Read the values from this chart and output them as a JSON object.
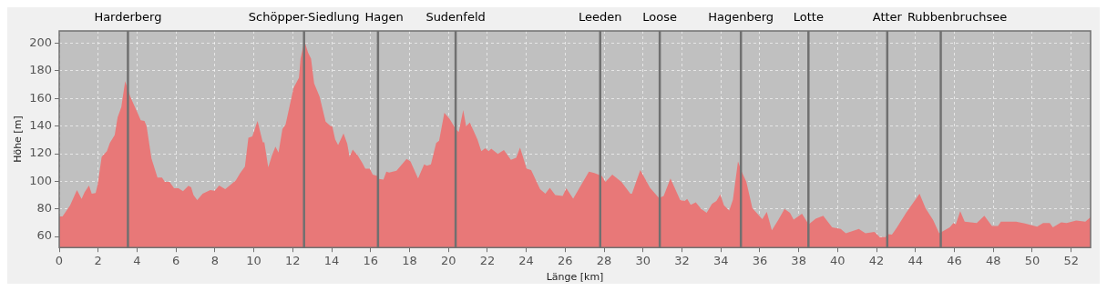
{
  "chart_data": {
    "type": "area",
    "xlabel": "Länge [km]",
    "ylabel": "Höhe [m]",
    "xlim": [
      0,
      53
    ],
    "ylim": [
      52,
      209
    ],
    "xticks": [
      0,
      2,
      4,
      6,
      8,
      10,
      12,
      14,
      16,
      18,
      20,
      22,
      24,
      26,
      28,
      30,
      32,
      34,
      36,
      38,
      40,
      42,
      44,
      46,
      48,
      50,
      52
    ],
    "yticks": [
      60,
      80,
      100,
      120,
      140,
      160,
      180,
      200
    ],
    "grid": true,
    "series": [
      {
        "color": "#e87878",
        "x": [
          0,
          0.17,
          0.56,
          0.91,
          1.15,
          1.3,
          1.53,
          1.67,
          1.87,
          1.98,
          2.18,
          2.45,
          2.6,
          2.85,
          3.0,
          3.19,
          3.39,
          3.53,
          3.65,
          3.96,
          4.19,
          4.38,
          4.49,
          4.74,
          5.05,
          5.28,
          5.43,
          5.67,
          5.9,
          6.13,
          6.36,
          6.64,
          6.78,
          6.9,
          7.09,
          7.37,
          7.76,
          7.99,
          8.22,
          8.53,
          8.76,
          9.07,
          9.3,
          9.54,
          9.72,
          9.92,
          10.19,
          10.46,
          10.54,
          10.74,
          10.93,
          11.11,
          11.27,
          11.47,
          11.63,
          11.86,
          12.04,
          12.32,
          12.4,
          12.6,
          12.79,
          12.94,
          13.1,
          13.38,
          13.69,
          13.95,
          14.03,
          14.18,
          14.33,
          14.61,
          14.8,
          14.92,
          15.08,
          15.34,
          15.57,
          15.73,
          15.96,
          16.11,
          16.35,
          16.42,
          16.66,
          16.81,
          16.95,
          17.33,
          17.85,
          18.05,
          18.44,
          18.75,
          18.9,
          19.1,
          19.37,
          19.52,
          19.79,
          20.06,
          20.37,
          20.53,
          20.76,
          20.91,
          21.1,
          21.49,
          21.69,
          21.89,
          22.07,
          22.2,
          22.54,
          22.85,
          23.21,
          23.48,
          23.68,
          24.02,
          24.25,
          24.71,
          24.98,
          25.21,
          25.49,
          25.87,
          26.06,
          26.41,
          27.22,
          27.5,
          27.88,
          28.07,
          28.42,
          28.89,
          29.35,
          29.43,
          29.86,
          30.36,
          30.82,
          31.06,
          31.41,
          31.91,
          32.14,
          32.27,
          32.45,
          32.71,
          32.99,
          33.27,
          33.54,
          33.77,
          33.97,
          34.16,
          34.43,
          34.62,
          34.88,
          35.07,
          35.31,
          35.62,
          36.13,
          36.36,
          36.62,
          36.96,
          37.27,
          37.55,
          37.74,
          38.17,
          38.51,
          38.87,
          39.26,
          39.72,
          40.16,
          40.42,
          41.09,
          41.43,
          41.89,
          42.17,
          42.43,
          42.59,
          42.79,
          43.05,
          43.52,
          44.21,
          44.52,
          44.91,
          45.22,
          45.76,
          45.95,
          46.07,
          46.3,
          46.53,
          47.15,
          47.54,
          47.93,
          48.24,
          48.39,
          49.17,
          49.63,
          50.25,
          50.56,
          50.9,
          51.06,
          51.49,
          51.77,
          52.26,
          52.73,
          53
        ],
        "values": [
          74.5,
          74.5,
          82.6,
          93.6,
          87.2,
          92,
          97,
          91,
          91.5,
          97.9,
          117.7,
          121.9,
          127.7,
          133.6,
          146.4,
          153.8,
          172.6,
          166.6,
          161.3,
          151.7,
          144.3,
          143.8,
          140,
          116.6,
          102.8,
          102.8,
          99.6,
          99.6,
          94.9,
          94.9,
          92.8,
          96.8,
          95.7,
          90,
          86.4,
          91,
          93.6,
          93.2,
          97,
          94.3,
          97,
          100.6,
          106,
          110.6,
          131.5,
          132.6,
          143.8,
          128.3,
          128.3,
          110.2,
          118.7,
          125.1,
          120.9,
          137.9,
          141.1,
          156,
          167.7,
          175.1,
          188.9,
          201.7,
          193.2,
          188.9,
          170.9,
          161.3,
          143.2,
          140,
          140,
          130.4,
          126.2,
          134.7,
          127.2,
          117.7,
          123,
          118.7,
          113.4,
          109.1,
          109.1,
          104.9,
          103.8,
          101.7,
          101.3,
          107,
          106.4,
          107.7,
          116.2,
          114.5,
          102.1,
          112.3,
          111.3,
          112.3,
          127.7,
          129.4,
          149.6,
          145.3,
          137.9,
          135.7,
          151.7,
          140,
          142.6,
          130.4,
          121.9,
          124,
          121.9,
          123.6,
          119.8,
          122.6,
          115.5,
          117,
          124.5,
          109.1,
          108.1,
          94.3,
          91,
          95.3,
          90,
          89.4,
          94.9,
          87.4,
          107,
          106,
          103.8,
          99.6,
          104.9,
          99.6,
          91,
          91,
          108.1,
          95.3,
          87.9,
          89.4,
          102.1,
          86.4,
          85.7,
          87.2,
          83,
          84.7,
          80,
          77.2,
          83.6,
          85.7,
          90.6,
          82.6,
          78.9,
          86.8,
          114.5,
          107,
          99.6,
          80.4,
          72.6,
          77.9,
          64.5,
          72.3,
          80,
          77.2,
          72.3,
          76.6,
          68.7,
          72.9,
          75.1,
          66.6,
          65.5,
          62.3,
          65.5,
          62.3,
          63.4,
          59.6,
          59.6,
          61.7,
          61.3,
          66.6,
          77.2,
          91,
          80.4,
          71.9,
          62.3,
          66.6,
          69.8,
          68.7,
          78.3,
          70.8,
          69.8,
          75.1,
          67.7,
          67.7,
          70.8,
          70.8,
          69.4,
          67.2,
          69.8,
          69.8,
          66.6,
          70.2,
          69.8,
          71.5,
          70.8,
          74
        ]
      }
    ],
    "ref_lines": [
      {
        "axis": "x",
        "value": 3.53,
        "label": "Harderberg",
        "color": "#707070"
      },
      {
        "axis": "x",
        "value": 12.58,
        "label": "Schöpper-Siedlung",
        "color": "#707070"
      },
      {
        "axis": "x",
        "value": 16.38,
        "label": "Hagen",
        "color": "#707070"
      },
      {
        "axis": "x",
        "value": 20.37,
        "label": "Sudenfeld",
        "color": "#707070"
      },
      {
        "axis": "x",
        "value": 27.8,
        "label": "Leeden",
        "color": "#707070"
      },
      {
        "axis": "x",
        "value": 30.86,
        "label": "Loose",
        "color": "#707070"
      },
      {
        "axis": "x",
        "value": 35.03,
        "label": "Hagenberg",
        "color": "#707070"
      },
      {
        "axis": "x",
        "value": 38.5,
        "label": "Lotte",
        "color": "#707070"
      },
      {
        "axis": "x",
        "value": 42.55,
        "label": "Atter",
        "color": "#707070"
      },
      {
        "axis": "x",
        "value": 45.3,
        "label": "Rubbenbruchsee",
        "color": "#707070"
      }
    ]
  }
}
